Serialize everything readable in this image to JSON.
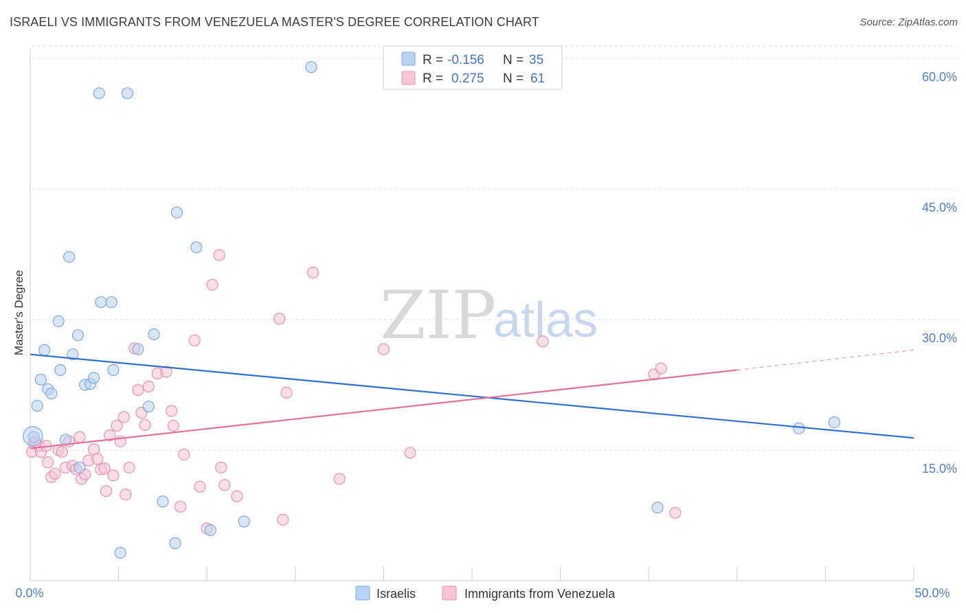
{
  "title": "ISRAELI VS IMMIGRANTS FROM VENEZUELA MASTER'S DEGREE CORRELATION CHART",
  "source": "Source: ZipAtlas.com",
  "watermark": {
    "zip": "ZIP",
    "atlas": "atlas"
  },
  "colors": {
    "israelis_fill": "#b8d2f2",
    "israelis_stroke": "#7ea8de",
    "israelis_line": "#2f6fcc",
    "venezuela_fill": "#f7c5d5",
    "venezuela_stroke": "#e990ae",
    "venezuela_line": "#e07098",
    "grid": "#dddddd",
    "tick_label": "#4a7fcf"
  },
  "legend": {
    "rows": [
      {
        "r_label": "R =",
        "r_value": "-0.156",
        "n_label": "N =",
        "n_value": "35"
      },
      {
        "r_label": "R =",
        "r_value": "0.275",
        "n_label": "N =",
        "n_value": "61"
      }
    ]
  },
  "chart_data": {
    "type": "scatter",
    "title": "ISRAELI VS IMMIGRANTS FROM VENEZUELA MASTER'S DEGREE CORRELATION CHART",
    "xlabel": "",
    "ylabel": "Master's Degree",
    "xlim": [
      0,
      50
    ],
    "ylim": [
      0,
      63
    ],
    "x_tick_labels": [
      "0.0%",
      "50.0%"
    ],
    "y_ticks": [
      15,
      30,
      45,
      60
    ],
    "y_tick_labels": [
      "15.0%",
      "30.0%",
      "45.0%",
      "60.0%"
    ],
    "grid": true,
    "series": [
      {
        "name": "Israelis",
        "points": [
          [
            0.2,
            16.5
          ],
          [
            0.4,
            20.1
          ],
          [
            0.6,
            23.1
          ],
          [
            0.8,
            26.5
          ],
          [
            1.0,
            22.0
          ],
          [
            1.2,
            21.5
          ],
          [
            1.6,
            29.8
          ],
          [
            1.7,
            24.2
          ],
          [
            2.0,
            16.2
          ],
          [
            2.2,
            37.2
          ],
          [
            2.4,
            26.0
          ],
          [
            2.7,
            28.2
          ],
          [
            2.8,
            13.0
          ],
          [
            3.1,
            22.5
          ],
          [
            3.4,
            22.6
          ],
          [
            3.6,
            23.3
          ],
          [
            3.9,
            56.0
          ],
          [
            4.0,
            32.0
          ],
          [
            4.6,
            32.0
          ],
          [
            4.7,
            24.2
          ],
          [
            5.1,
            3.2
          ],
          [
            5.5,
            56.0
          ],
          [
            6.1,
            26.6
          ],
          [
            6.7,
            20.0
          ],
          [
            7.0,
            28.3
          ],
          [
            7.5,
            9.1
          ],
          [
            8.2,
            4.3
          ],
          [
            8.3,
            42.3
          ],
          [
            9.4,
            38.3
          ],
          [
            10.2,
            5.8
          ],
          [
            12.1,
            6.8
          ],
          [
            15.9,
            59.0
          ],
          [
            35.5,
            8.4
          ],
          [
            43.5,
            17.5
          ],
          [
            45.5,
            18.2
          ]
        ]
      },
      {
        "name": "Immigrants from Venezuela",
        "points": [
          [
            0.1,
            14.8
          ],
          [
            0.2,
            15.8
          ],
          [
            0.3,
            16.0
          ],
          [
            0.5,
            15.5
          ],
          [
            0.6,
            14.8
          ],
          [
            0.9,
            15.5
          ],
          [
            1.0,
            13.6
          ],
          [
            1.2,
            11.9
          ],
          [
            1.4,
            12.3
          ],
          [
            1.6,
            15.0
          ],
          [
            1.8,
            14.8
          ],
          [
            2.0,
            13.0
          ],
          [
            2.2,
            16.0
          ],
          [
            2.4,
            13.2
          ],
          [
            2.6,
            12.8
          ],
          [
            2.8,
            16.5
          ],
          [
            2.9,
            11.7
          ],
          [
            3.1,
            12.2
          ],
          [
            3.3,
            13.8
          ],
          [
            3.6,
            15.1
          ],
          [
            3.8,
            14.0
          ],
          [
            4.0,
            12.8
          ],
          [
            4.2,
            12.9
          ],
          [
            4.3,
            10.3
          ],
          [
            4.5,
            16.7
          ],
          [
            4.7,
            12.1
          ],
          [
            4.9,
            17.8
          ],
          [
            5.1,
            16.0
          ],
          [
            5.3,
            18.8
          ],
          [
            5.4,
            9.9
          ],
          [
            5.6,
            13.0
          ],
          [
            5.9,
            26.7
          ],
          [
            6.1,
            21.9
          ],
          [
            6.3,
            19.3
          ],
          [
            6.5,
            17.9
          ],
          [
            6.7,
            22.3
          ],
          [
            7.2,
            23.8
          ],
          [
            7.7,
            24.0
          ],
          [
            8.0,
            19.5
          ],
          [
            8.1,
            17.8
          ],
          [
            8.5,
            8.5
          ],
          [
            8.7,
            14.5
          ],
          [
            9.3,
            27.6
          ],
          [
            9.6,
            10.8
          ],
          [
            10.0,
            6.0
          ],
          [
            10.3,
            34.0
          ],
          [
            10.7,
            37.4
          ],
          [
            10.8,
            13.0
          ],
          [
            11.0,
            11.0
          ],
          [
            11.7,
            9.7
          ],
          [
            14.1,
            30.1
          ],
          [
            14.3,
            7.0
          ],
          [
            14.5,
            21.6
          ],
          [
            16.0,
            35.4
          ],
          [
            17.5,
            11.7
          ],
          [
            20.0,
            26.6
          ],
          [
            21.5,
            14.7
          ],
          [
            29.0,
            27.5
          ],
          [
            35.3,
            23.7
          ],
          [
            35.7,
            24.4
          ],
          [
            36.5,
            7.8
          ]
        ]
      }
    ],
    "trend_lines": [
      {
        "name": "Israelis",
        "x": [
          0,
          50
        ],
        "y": [
          26.0,
          16.4
        ]
      },
      {
        "name": "Immigrants from Venezuela",
        "x": [
          0,
          40
        ],
        "y": [
          15.2,
          24.2
        ],
        "dashed_x": [
          40,
          50
        ],
        "dashed_y": [
          24.2,
          26.5
        ]
      }
    ]
  }
}
